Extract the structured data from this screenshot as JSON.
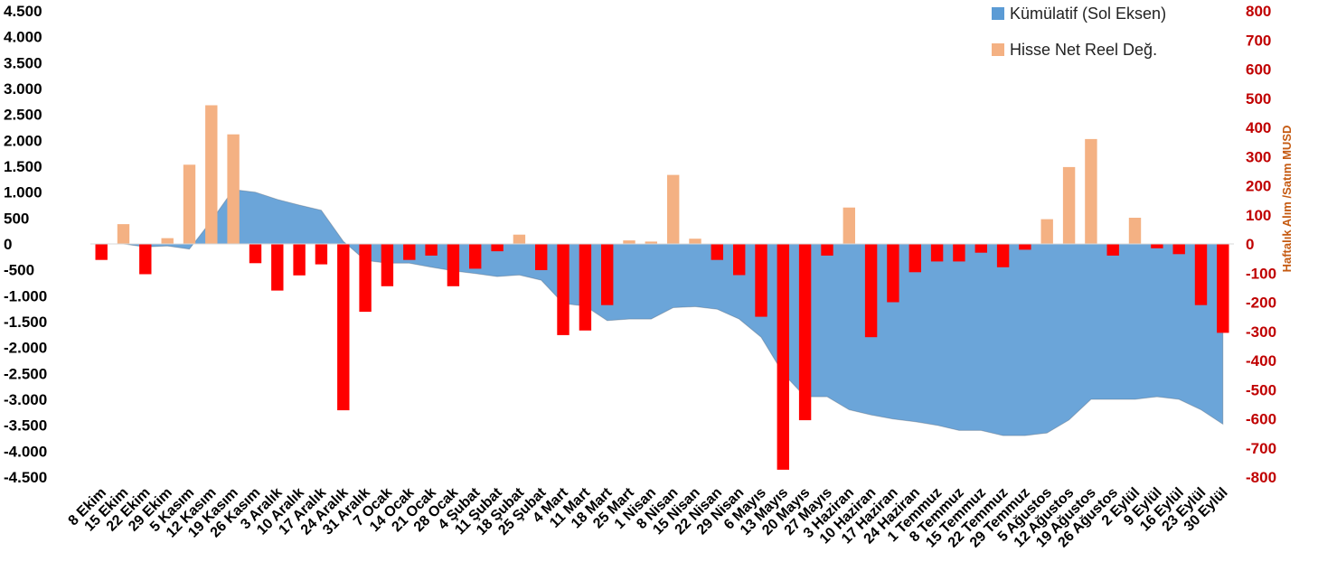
{
  "chart_data": {
    "type": "bar",
    "categories": [
      "8 Ekim",
      "15 Ekim",
      "22 Ekim",
      "29 Ekim",
      "5 Kasım",
      "12 Kasım",
      "19 Kasım",
      "26 Kasım",
      "3 Aralık",
      "10 Aralık",
      "17 Aralık",
      "24 Aralık",
      "31 Aralık",
      "7 Ocak",
      "14 Ocak",
      "21 Ocak",
      "28 Ocak",
      "4 Şubat",
      "11 Şubat",
      "18 Şubat",
      "25 Şubat",
      "4 Mart",
      "11 Mart",
      "18 Mart",
      "25 Mart",
      "1 Nisan",
      "8 Nisan",
      "15 Nisan",
      "22 Nisan",
      "29 Nisan",
      "6 Mayıs",
      "13 Mayıs",
      "20 Mayıs",
      "27 Mayıs",
      "3 Haziran",
      "10 Haziran",
      "17 Haziran",
      "24 Haziran",
      "1 Temmuz",
      "8 Temmuz",
      "15 Temmuz",
      "22 Temmuz",
      "29 Temmuz",
      "5 Ağustos",
      "12 Ağustos",
      "19 Ağustos",
      "26 Ağustos",
      "2 Eylül",
      "9 Eylül",
      "16 Eylül",
      "23 Eylül",
      "30 Eylül"
    ],
    "series": [
      {
        "name": "Kümülatif (Sol Eksen)",
        "type": "area",
        "axis": "left",
        "color": "#5b9bd5",
        "values": [
          0,
          0,
          -60,
          -40,
          -100,
          450,
          1050,
          1000,
          860,
          750,
          650,
          50,
          -320,
          -370,
          -370,
          -450,
          -520,
          -570,
          -630,
          -600,
          -700,
          -1150,
          -1200,
          -1480,
          -1450,
          -1450,
          -1230,
          -1210,
          -1260,
          -1450,
          -1800,
          -2500,
          -2950,
          -2950,
          -3200,
          -3300,
          -3380,
          -3430,
          -3500,
          -3600,
          -3600,
          -3700,
          -3700,
          -3650,
          -3400,
          -3000,
          -3000,
          -3000,
          -2950,
          -3000,
          -3200,
          -3480
        ]
      },
      {
        "name": "Hisse Net Reel Değ.",
        "type": "bar",
        "axis": "right",
        "color_positive": "#f4b183",
        "color_negative": "#ff0000",
        "values": [
          -55,
          68,
          -104,
          20,
          272,
          476,
          376,
          -66,
          -160,
          -108,
          -70,
          -571,
          -233,
          -145,
          -55,
          -40,
          -145,
          -85,
          -25,
          32,
          -90,
          -313,
          -297,
          -210,
          12,
          8,
          237,
          18,
          -55,
          -107,
          -250,
          -775,
          -605,
          -40,
          125,
          -320,
          -200,
          -97,
          -60,
          -60,
          -30,
          -80,
          -20,
          85,
          264,
          360,
          -40,
          90,
          -15,
          -35,
          -210,
          -305
        ]
      }
    ],
    "y_left": {
      "ylim": [
        -4500,
        4500
      ],
      "ticks": [
        4500,
        4000,
        3500,
        3000,
        2500,
        2000,
        1500,
        1000,
        500,
        0,
        -500,
        -1000,
        -1500,
        -2000,
        -2500,
        -3000,
        -3500,
        -4000,
        -4500
      ],
      "tick_labels": [
        "4.500",
        "4.000",
        "3.500",
        "3.000",
        "2.500",
        "2.000",
        "1.500",
        "1.000",
        "500",
        "0",
        "-500",
        "-1.000",
        "-1.500",
        "-2.000",
        "-2.500",
        "-3.000",
        "-3.500",
        "-4.000",
        "-4.500"
      ]
    },
    "y_right": {
      "ylim": [
        -800,
        800
      ],
      "ticks": [
        800,
        700,
        600,
        500,
        400,
        300,
        200,
        100,
        0,
        -100,
        -200,
        -300,
        -400,
        -500,
        -600,
        -700,
        -800
      ],
      "tick_labels": [
        "800",
        "700",
        "600",
        "500",
        "400",
        "300",
        "200",
        "100",
        "0",
        "-100",
        "-200",
        "-300",
        "-400",
        "-500",
        "-600",
        "-700",
        "-800"
      ],
      "label": "Haftalık  Alım  /Satım  MUSD"
    },
    "legend": {
      "placement": "top-right",
      "entries": [
        {
          "label": "Kümülatif (Sol Eksen)",
          "color": "#5b9bd5"
        },
        {
          "label": "Hisse Net Reel Değ.",
          "color": "#f4b183"
        }
      ]
    },
    "grid": false,
    "title": "",
    "xlabel": ""
  }
}
